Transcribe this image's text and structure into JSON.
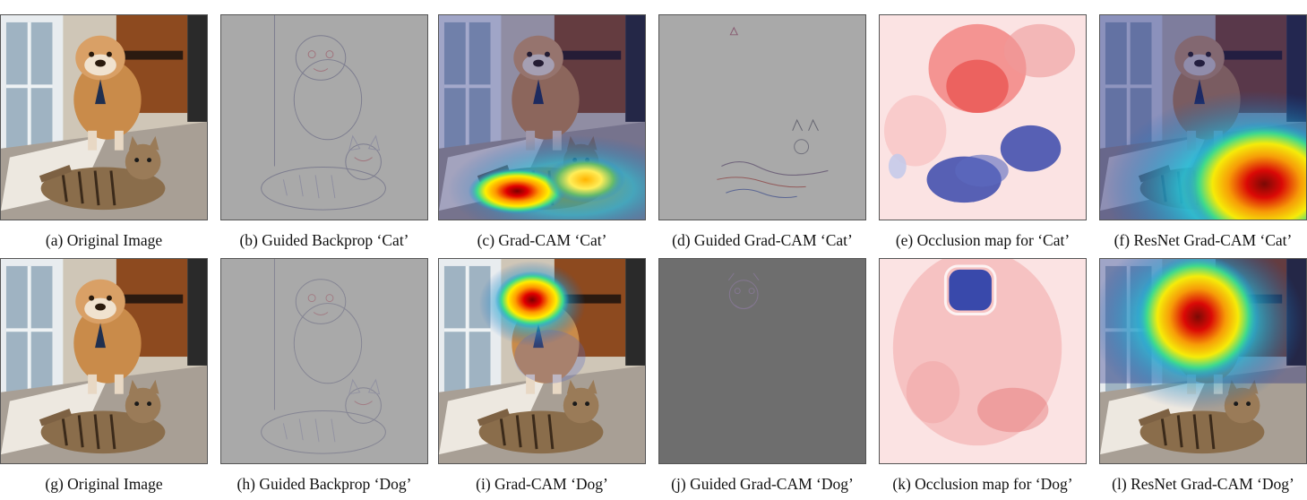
{
  "figure": {
    "panels": [
      {
        "id": "a",
        "caption": "(a) Original Image",
        "kind": "photo"
      },
      {
        "id": "b",
        "caption": "(b) Guided Backprop ‘Cat’",
        "kind": "gb",
        "focus": "cat"
      },
      {
        "id": "c",
        "caption": "(c) Grad-CAM ‘Cat’",
        "kind": "gradcam",
        "focus": "cat"
      },
      {
        "id": "d",
        "caption": "(d) Guided Grad-CAM ‘Cat’",
        "kind": "ggc",
        "focus": "cat"
      },
      {
        "id": "e",
        "caption": "(e) Occlusion map for ‘Cat’",
        "kind": "occlusion",
        "focus": "cat"
      },
      {
        "id": "f",
        "caption": "(f) ResNet Grad-CAM ‘Cat’",
        "kind": "resnet",
        "focus": "cat"
      },
      {
        "id": "g",
        "caption": "(g) Original Image",
        "kind": "photo"
      },
      {
        "id": "h",
        "caption": "(h) Guided Backprop ‘Dog’",
        "kind": "gb",
        "focus": "dog"
      },
      {
        "id": "i",
        "caption": "(i) Grad-CAM ‘Dog’",
        "kind": "gradcam",
        "focus": "dog"
      },
      {
        "id": "j",
        "caption": "(j) Guided Grad-CAM ‘Dog’",
        "kind": "ggc",
        "focus": "dog"
      },
      {
        "id": "k",
        "caption": "(k) Occlusion map for ‘Dog’",
        "kind": "occlusion",
        "focus": "dog"
      },
      {
        "id": "l",
        "caption": "(l) ResNet Grad-CAM ‘Dog’",
        "kind": "resnet",
        "focus": "dog"
      }
    ]
  }
}
